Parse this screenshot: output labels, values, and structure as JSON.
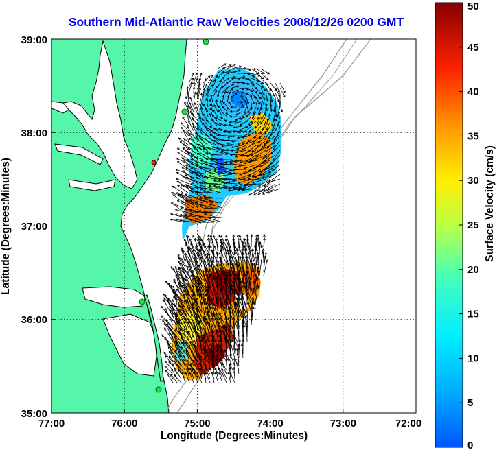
{
  "title": "Southern Mid-Atlantic Raw Velocities 2008/12/26 0200 GMT",
  "map": {
    "xlabel": "Longitude (Degrees:Minutes)",
    "ylabel": "Latitude (Degrees:Minutes)",
    "x_ticks": [
      "77:00",
      "76:00",
      "75:00",
      "74:00",
      "73:00",
      "72:00"
    ],
    "y_ticks": [
      "39:00",
      "38:00",
      "37:00",
      "36:00",
      "35:00"
    ],
    "lon_range": [
      -77,
      -72
    ],
    "lat_range": [
      35,
      39
    ],
    "grid": true,
    "land_color": "#55f5aa",
    "coast_color": "#000000",
    "bathymetry_color": "#999999",
    "station_color": "#22dd44",
    "marker_color": "#ee2222"
  },
  "colorbar": {
    "label": "Surface Velocity (cm/s)",
    "ticks": [
      "50",
      "45",
      "40",
      "35",
      "30",
      "25",
      "20",
      "15",
      "10",
      "5",
      "0"
    ],
    "range": [
      0,
      50
    ],
    "colormap": "jet"
  }
}
